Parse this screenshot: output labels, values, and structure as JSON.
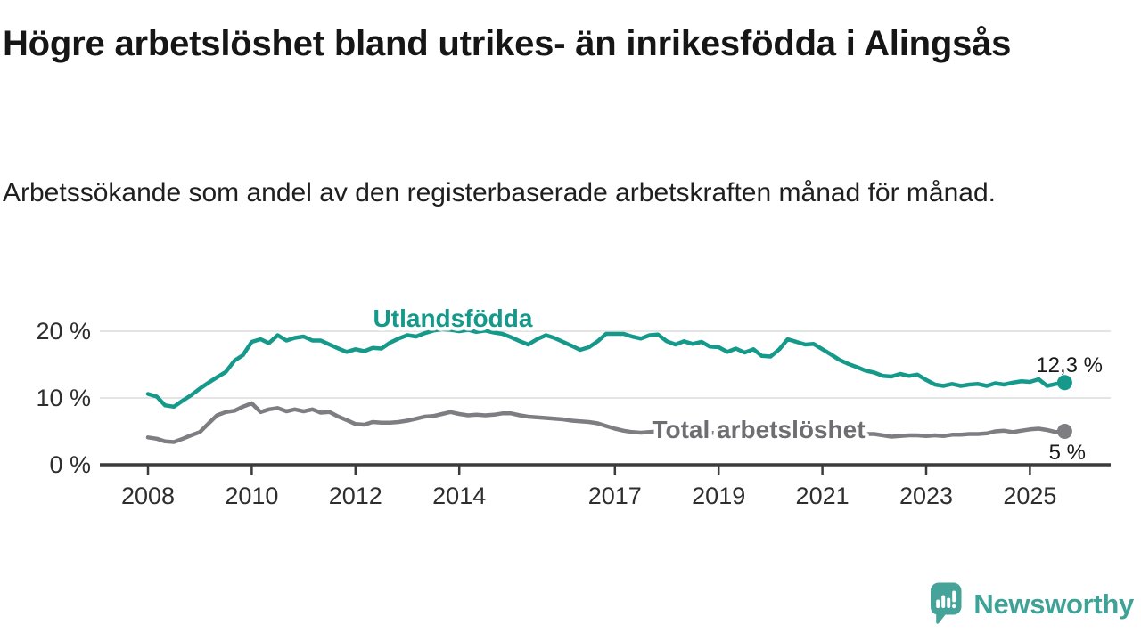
{
  "footer": {
    "brand": "Newsworthy",
    "brand_color": "#3fa296",
    "icon": "speech-bubble-bar-chart-icon",
    "icon_color": "#46a399"
  },
  "chart_data": {
    "type": "line",
    "title": "Högre arbetslöshet bland utrikes- än inrikesfödda i Alingsås",
    "subtitle": "Arbetssökande som andel av den registerbaserade arbetskraften månad för månad.",
    "grid": "horizontal",
    "legend": "inline-labels",
    "grid_color": "#dcdcdc",
    "axis_color": "#3b3b3b",
    "xlim": [
      2007.07,
      2026.56
    ],
    "ylim": [
      0,
      22
    ],
    "y_ticks": [
      {
        "value": 0,
        "label": "0 %"
      },
      {
        "value": 10,
        "label": "10 %"
      },
      {
        "value": 20,
        "label": "20 %"
      }
    ],
    "x_ticks": [
      {
        "value": 2008,
        "label": "2008"
      },
      {
        "value": 2010,
        "label": "2010"
      },
      {
        "value": 2012,
        "label": "2012"
      },
      {
        "value": 2014,
        "label": "2014"
      },
      {
        "value": 2017,
        "label": "2017"
      },
      {
        "value": 2019,
        "label": "2019"
      },
      {
        "value": 2021,
        "label": "2021"
      },
      {
        "value": 2023,
        "label": "2023"
      },
      {
        "value": 2025,
        "label": "2025"
      }
    ],
    "x_unit": "decimal year (approx. bi-monthly samples)",
    "x": [
      2008,
      2008.17,
      2008.33,
      2008.5,
      2008.67,
      2008.83,
      2009,
      2009.17,
      2009.33,
      2009.5,
      2009.67,
      2009.83,
      2010,
      2010.17,
      2010.33,
      2010.5,
      2010.67,
      2010.83,
      2011,
      2011.17,
      2011.33,
      2011.5,
      2011.67,
      2011.83,
      2012,
      2012.17,
      2012.33,
      2012.5,
      2012.67,
      2012.83,
      2013,
      2013.17,
      2013.33,
      2013.5,
      2013.67,
      2013.83,
      2014,
      2014.17,
      2014.33,
      2014.5,
      2014.67,
      2014.83,
      2015,
      2015.17,
      2015.33,
      2015.5,
      2015.67,
      2015.83,
      2016,
      2016.17,
      2016.33,
      2016.5,
      2016.67,
      2016.83,
      2017,
      2017.17,
      2017.33,
      2017.5,
      2017.67,
      2017.83,
      2018,
      2018.17,
      2018.33,
      2018.5,
      2018.67,
      2018.83,
      2019,
      2019.17,
      2019.33,
      2019.5,
      2019.67,
      2019.83,
      2020,
      2020.17,
      2020.33,
      2020.5,
      2020.67,
      2020.83,
      2021,
      2021.17,
      2021.33,
      2021.5,
      2021.67,
      2021.83,
      2022,
      2022.17,
      2022.33,
      2022.5,
      2022.67,
      2022.83,
      2023,
      2023.17,
      2023.33,
      2023.5,
      2023.67,
      2023.83,
      2024,
      2024.17,
      2024.33,
      2024.5,
      2024.67,
      2024.83,
      2025,
      2025.17,
      2025.33,
      2025.5,
      2025.67
    ],
    "series": [
      {
        "name": "Utlandsfödda",
        "color": "#14998b",
        "label_color": "#14998b",
        "end_label": "12,3 %",
        "end_value": 12.3,
        "values": [
          10.6,
          10.2,
          8.9,
          8.7,
          9.6,
          10.4,
          11.4,
          12.3,
          13.1,
          13.9,
          15.6,
          16.4,
          18.4,
          18.8,
          18.2,
          19.4,
          18.6,
          19.0,
          19.2,
          18.6,
          18.6,
          18.0,
          17.4,
          16.9,
          17.3,
          17.0,
          17.5,
          17.4,
          18.3,
          18.9,
          19.4,
          19.2,
          19.7,
          20.1,
          20.3,
          20.2,
          20.0,
          20.2,
          19.9,
          20.1,
          19.8,
          19.6,
          19.1,
          18.5,
          18.0,
          18.8,
          19.4,
          19.0,
          18.4,
          17.8,
          17.2,
          17.6,
          18.5,
          19.6,
          19.6,
          19.6,
          19.2,
          18.9,
          19.4,
          19.5,
          18.5,
          18.0,
          18.5,
          18.1,
          18.4,
          17.7,
          17.6,
          16.9,
          17.4,
          16.8,
          17.3,
          16.3,
          16.2,
          17.3,
          18.8,
          18.4,
          18.0,
          18.1,
          17.3,
          16.5,
          15.7,
          15.1,
          14.6,
          14.1,
          13.8,
          13.3,
          13.2,
          13.6,
          13.3,
          13.5,
          12.7,
          12.0,
          11.8,
          12.1,
          11.8,
          12.0,
          12.1,
          11.8,
          12.2,
          12.0,
          12.3,
          12.5,
          12.4,
          12.8,
          11.8,
          12.1,
          12.3
        ]
      },
      {
        "name": "Total arbetslöshet",
        "color": "#7e7e82",
        "label_color": "#6e6e72",
        "end_label": "5 %",
        "end_value": 5.0,
        "values": [
          4.1,
          3.9,
          3.5,
          3.4,
          3.9,
          4.4,
          4.9,
          6.2,
          7.4,
          7.9,
          8.1,
          8.7,
          9.2,
          7.9,
          8.3,
          8.5,
          8.0,
          8.3,
          8.0,
          8.3,
          7.8,
          7.9,
          7.2,
          6.7,
          6.1,
          6.0,
          6.4,
          6.3,
          6.3,
          6.4,
          6.6,
          6.9,
          7.2,
          7.3,
          7.6,
          7.9,
          7.6,
          7.4,
          7.5,
          7.4,
          7.5,
          7.7,
          7.7,
          7.4,
          7.2,
          7.1,
          7.0,
          6.9,
          6.8,
          6.6,
          6.5,
          6.4,
          6.2,
          5.8,
          5.4,
          5.1,
          4.9,
          4.8,
          4.9,
          5.0,
          4.9,
          4.8,
          4.7,
          4.8,
          4.9,
          4.8,
          4.7,
          4.8,
          4.9,
          4.8,
          4.7,
          4.8,
          4.9,
          5.2,
          5.6,
          5.7,
          5.5,
          5.4,
          5.2,
          5.0,
          4.9,
          4.8,
          4.7,
          4.6,
          4.6,
          4.4,
          4.2,
          4.3,
          4.4,
          4.4,
          4.3,
          4.4,
          4.3,
          4.5,
          4.5,
          4.6,
          4.6,
          4.7,
          5.0,
          5.1,
          4.9,
          5.1,
          5.3,
          5.4,
          5.2,
          4.9,
          5.0
        ]
      }
    ]
  }
}
